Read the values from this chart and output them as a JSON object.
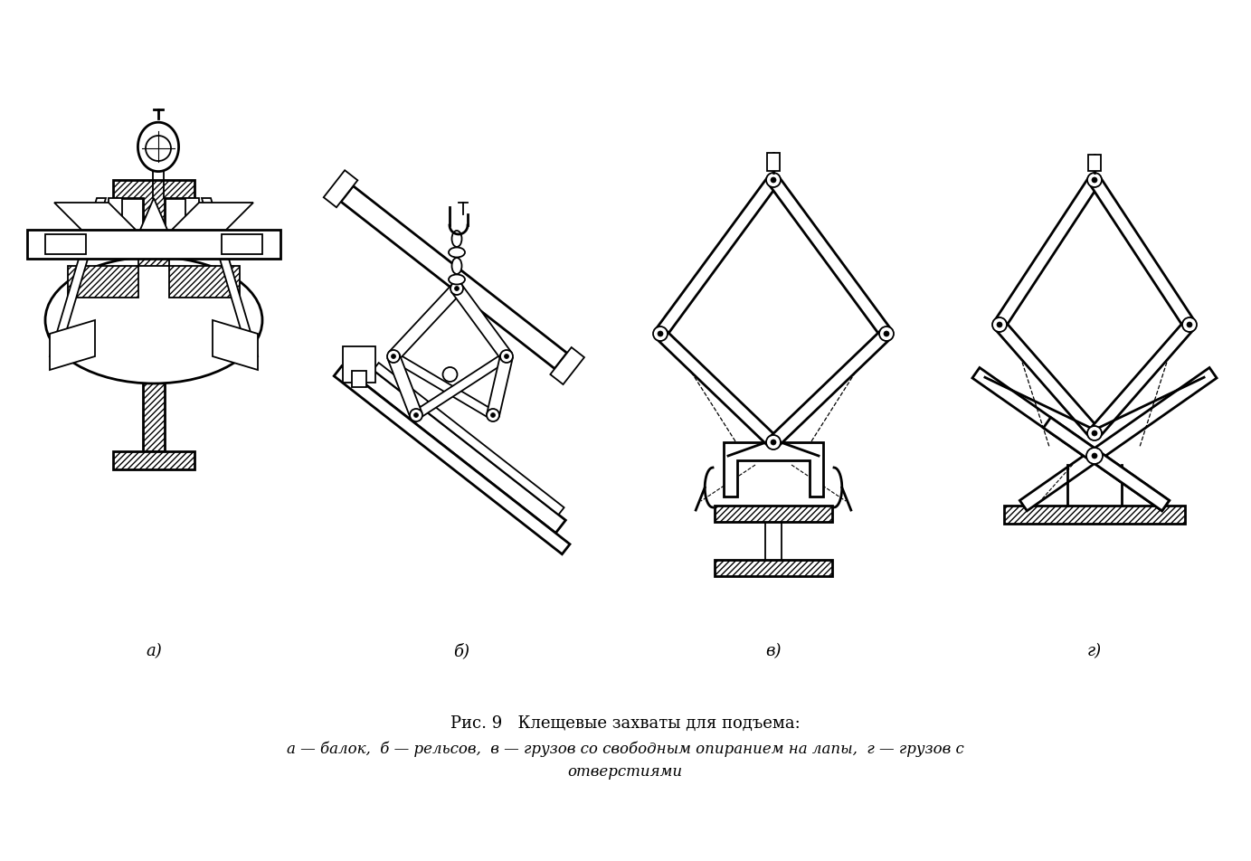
{
  "bg_color": "#ffffff",
  "line_color": "#000000",
  "title_line1": "Рис. 9   Клещевые захваты для подъема:",
  "title_line2": "а — балок,  б — рельсов,  в — грузов со свободным опиранием на лапы,  г — грузов с",
  "title_line3": "отверстиями",
  "label_a": "а)",
  "label_b": "б)",
  "label_v": "в)",
  "label_g": "г)",
  "title_fontsize": 13,
  "label_fontsize": 13,
  "figsize": [
    13.83,
    9.53
  ],
  "dpi": 100
}
